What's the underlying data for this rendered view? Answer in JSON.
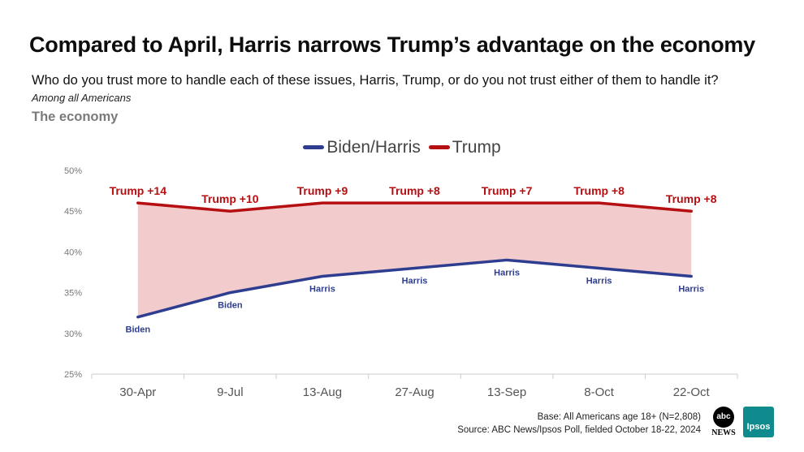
{
  "header": {
    "title": "Compared to April, Harris narrows Trump’s advantage on the economy",
    "question": "Who do you trust more to handle each of these issues, Harris, Trump, or do you not trust either of them to handle it?",
    "population": "Among all Americans",
    "subhead": "The economy"
  },
  "legend": {
    "biden_label": "Biden/Harris",
    "trump_label": "Trump"
  },
  "footer": {
    "base": "Base: All Americans age 18+ (N=2,808)",
    "source": "Source: ABC News/Ipsos Poll, fielded October 18-22, 2024"
  },
  "logos": {
    "abc": "abc",
    "abc_news": "NEWS",
    "ipsos": "Ipsos"
  },
  "colors": {
    "biden": "#2e3d8f",
    "trump": "#b50f12",
    "fill": "#f2cccd",
    "axis": "#cccccc",
    "tick_text": "#777777"
  },
  "chart_data": {
    "type": "line",
    "categories": [
      "30-Apr",
      "9-Jul",
      "13-Aug",
      "27-Aug",
      "13-Sep",
      "8-Oct",
      "22-Oct"
    ],
    "series": [
      {
        "name": "Biden/Harris",
        "values": [
          32,
          35,
          37,
          38,
          39,
          38,
          37
        ],
        "labels": [
          "Biden",
          "Biden",
          "Harris",
          "Harris",
          "Harris",
          "Harris",
          "Harris"
        ]
      },
      {
        "name": "Trump",
        "values": [
          46,
          45,
          46,
          46,
          46,
          46,
          45
        ],
        "labels": [
          "Trump +14",
          "Trump +10",
          "Trump +9",
          "Trump +8",
          "Trump +7",
          "Trump +8",
          "Trump +8"
        ]
      }
    ],
    "ylim": [
      25,
      50
    ],
    "yticks": [
      25,
      30,
      35,
      40,
      45,
      50
    ],
    "ytick_labels": [
      "25%",
      "30%",
      "35%",
      "40%",
      "45%",
      "50%"
    ],
    "shaded_gap": true,
    "grid": false,
    "legend_position": "top-center"
  }
}
